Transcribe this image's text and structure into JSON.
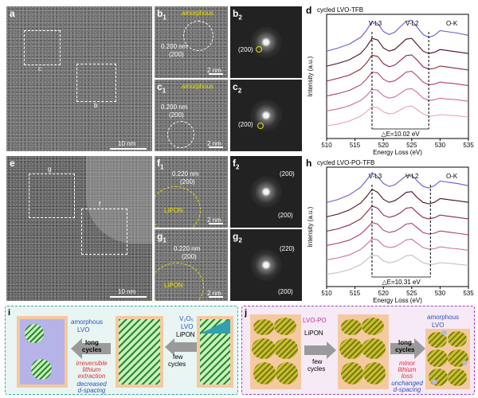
{
  "labels": {
    "a": "a",
    "b1": "b",
    "b1s": "1",
    "b2": "b",
    "b2s": "2",
    "c1": "c",
    "c1s": "1",
    "c2": "c",
    "c2s": "2",
    "d": "d",
    "e": "e",
    "f1": "f",
    "f1s": "1",
    "f2": "f",
    "f2s": "2",
    "g1": "g",
    "g1s": "1",
    "g2": "g",
    "g2s": "2",
    "h": "h",
    "i": "i",
    "j": "j",
    "box_c": "c",
    "box_b": "b",
    "box_g": "g",
    "box_f": "f"
  },
  "tem": {
    "scale_a": "10 nm",
    "scale_e": "10 nm",
    "scale_2nm": "2 nm",
    "amorphous": "amorphous",
    "dspacing_b": "0.200 nm",
    "plane_b": "(200)",
    "dspacing_c": "0.200 nm",
    "plane_c": "(200)",
    "dspacing_f": "0.220 nm",
    "plane_f": "(200)",
    "dspacing_g": "0.220 nm",
    "plane_g": "(200)",
    "lipon": "LiPON",
    "fft_b2": "(200)",
    "fft_c2": "(200)",
    "fft_f2_top": "(200)",
    "fft_f2_bot": "(200)",
    "fft_g2_top": "(220)",
    "fft_g2_bot": "(200)"
  },
  "chart_data": [
    {
      "type": "line",
      "title": "cycled LVO-TFB",
      "xlabel": "Energy Loss (eV)",
      "ylabel": "Intensity (a.u.)",
      "xlim": [
        510,
        535
      ],
      "xticks": [
        "510",
        "515",
        "520",
        "525",
        "530",
        "535"
      ],
      "peak_labels": [
        "V-L3",
        "V-L2",
        "O-K"
      ],
      "dashed_lines_x": [
        518,
        528
      ],
      "annotation": "△E=10.02 eV",
      "series_colors": [
        "#6a5acd",
        "#4a0f1a",
        "#8b2a3a",
        "#b04060",
        "#d07090",
        "#e8a0b8"
      ],
      "series": [
        {
          "offset": 5,
          "x": [
            510,
            512,
            514,
            516,
            517,
            518,
            519,
            520,
            521,
            522,
            523,
            524,
            525,
            526,
            527,
            528,
            529,
            530,
            531,
            532,
            533,
            535
          ],
          "y": [
            0.2,
            0.28,
            0.38,
            0.55,
            0.72,
            0.95,
            0.9,
            0.7,
            0.62,
            0.68,
            0.82,
            0.95,
            0.98,
            0.8,
            0.62,
            0.55,
            0.6,
            0.72,
            0.7,
            0.68,
            0.66,
            0.6
          ]
        },
        {
          "offset": 4,
          "x": [
            510,
            512,
            514,
            516,
            517,
            518,
            519,
            520,
            521,
            522,
            523,
            524,
            525,
            526,
            527,
            528,
            529,
            530,
            531,
            532,
            533,
            535
          ],
          "y": [
            0.2,
            0.27,
            0.36,
            0.52,
            0.68,
            0.9,
            0.86,
            0.66,
            0.58,
            0.62,
            0.75,
            0.88,
            0.9,
            0.74,
            0.58,
            0.52,
            0.55,
            0.62,
            0.6,
            0.58,
            0.56,
            0.52
          ]
        },
        {
          "offset": 3,
          "x": [
            510,
            512,
            514,
            516,
            517,
            518,
            519,
            520,
            521,
            522,
            523,
            524,
            525,
            526,
            527,
            528,
            529,
            530,
            531,
            532,
            533,
            535
          ],
          "y": [
            0.2,
            0.27,
            0.35,
            0.5,
            0.65,
            0.85,
            0.82,
            0.64,
            0.56,
            0.6,
            0.72,
            0.84,
            0.86,
            0.72,
            0.56,
            0.5,
            0.52,
            0.58,
            0.56,
            0.54,
            0.52,
            0.48
          ]
        },
        {
          "offset": 2,
          "x": [
            510,
            512,
            514,
            516,
            517,
            518,
            519,
            520,
            521,
            522,
            523,
            524,
            525,
            526,
            527,
            528,
            529,
            530,
            531,
            532,
            533,
            535
          ],
          "y": [
            0.2,
            0.26,
            0.34,
            0.48,
            0.62,
            0.8,
            0.78,
            0.62,
            0.55,
            0.58,
            0.68,
            0.8,
            0.82,
            0.7,
            0.55,
            0.48,
            0.5,
            0.55,
            0.53,
            0.52,
            0.5,
            0.46
          ]
        },
        {
          "offset": 1,
          "x": [
            510,
            512,
            514,
            516,
            517,
            518,
            519,
            520,
            521,
            522,
            523,
            524,
            525,
            526,
            527,
            528,
            529,
            530,
            531,
            532,
            533,
            535
          ],
          "y": [
            0.2,
            0.25,
            0.33,
            0.46,
            0.58,
            0.74,
            0.72,
            0.58,
            0.52,
            0.55,
            0.64,
            0.74,
            0.76,
            0.66,
            0.52,
            0.46,
            0.48,
            0.52,
            0.5,
            0.49,
            0.48,
            0.44
          ]
        },
        {
          "offset": 0,
          "x": [
            510,
            512,
            514,
            516,
            517,
            518,
            519,
            520,
            521,
            522,
            523,
            524,
            525,
            526,
            527,
            528,
            529,
            530,
            531,
            532,
            533,
            535
          ],
          "y": [
            0.2,
            0.24,
            0.32,
            0.44,
            0.55,
            0.68,
            0.66,
            0.55,
            0.5,
            0.52,
            0.6,
            0.68,
            0.7,
            0.6,
            0.5,
            0.44,
            0.45,
            0.48,
            0.47,
            0.46,
            0.45,
            0.42
          ]
        }
      ]
    },
    {
      "type": "line",
      "title": "cycled LVO-PO-TFB",
      "xlabel": "Energy Loss (eV)",
      "ylabel": "Intensity (a.u.)",
      "xlim": [
        510,
        535
      ],
      "xticks": [
        "510",
        "515",
        "520",
        "525",
        "530",
        "535"
      ],
      "peak_labels": [
        "V-L3",
        "V-L2",
        "O-K"
      ],
      "dashed_lines_x": [
        518,
        528.3
      ],
      "annotation": "△E=10.31 eV",
      "series_colors": [
        "#6a5acd",
        "#4a0f1a",
        "#8b2a3a",
        "#b04060",
        "#d07090",
        "#c0c0c0"
      ],
      "series": [
        {
          "offset": 5,
          "x": [
            510,
            512,
            514,
            516,
            517,
            518,
            519,
            520,
            521,
            522,
            523,
            524,
            525,
            526,
            527,
            528,
            529,
            530,
            531,
            532,
            533,
            535
          ],
          "y": [
            0.2,
            0.28,
            0.4,
            0.6,
            0.78,
            0.98,
            0.88,
            0.7,
            0.62,
            0.66,
            0.78,
            0.9,
            0.92,
            0.76,
            0.62,
            0.58,
            0.64,
            0.76,
            0.74,
            0.72,
            0.7,
            0.64
          ]
        },
        {
          "offset": 4,
          "x": [
            510,
            512,
            514,
            516,
            517,
            518,
            519,
            520,
            521,
            522,
            523,
            524,
            525,
            526,
            527,
            528,
            529,
            530,
            531,
            532,
            533,
            535
          ],
          "y": [
            0.2,
            0.27,
            0.38,
            0.56,
            0.72,
            0.92,
            0.84,
            0.66,
            0.58,
            0.62,
            0.72,
            0.84,
            0.86,
            0.7,
            0.58,
            0.54,
            0.58,
            0.68,
            0.66,
            0.64,
            0.62,
            0.58
          ]
        },
        {
          "offset": 3,
          "x": [
            510,
            512,
            514,
            516,
            517,
            518,
            519,
            520,
            521,
            522,
            523,
            524,
            525,
            526,
            527,
            528,
            529,
            530,
            531,
            532,
            533,
            535
          ],
          "y": [
            0.2,
            0.26,
            0.36,
            0.52,
            0.68,
            0.86,
            0.8,
            0.62,
            0.56,
            0.6,
            0.68,
            0.8,
            0.82,
            0.68,
            0.56,
            0.52,
            0.55,
            0.62,
            0.6,
            0.58,
            0.56,
            0.52
          ]
        },
        {
          "offset": 2,
          "x": [
            510,
            512,
            514,
            516,
            517,
            518,
            519,
            520,
            521,
            522,
            523,
            524,
            525,
            526,
            527,
            528,
            529,
            530,
            531,
            532,
            533,
            535
          ],
          "y": [
            0.2,
            0.26,
            0.34,
            0.5,
            0.64,
            0.8,
            0.76,
            0.6,
            0.54,
            0.57,
            0.65,
            0.76,
            0.78,
            0.66,
            0.54,
            0.5,
            0.52,
            0.58,
            0.56,
            0.54,
            0.52,
            0.48
          ]
        },
        {
          "offset": 1,
          "x": [
            510,
            512,
            514,
            516,
            517,
            518,
            519,
            520,
            521,
            522,
            523,
            524,
            525,
            526,
            527,
            528,
            529,
            530,
            531,
            532,
            533,
            535
          ],
          "y": [
            0.2,
            0.25,
            0.33,
            0.47,
            0.6,
            0.75,
            0.72,
            0.57,
            0.52,
            0.54,
            0.62,
            0.72,
            0.74,
            0.63,
            0.52,
            0.48,
            0.49,
            0.54,
            0.52,
            0.5,
            0.49,
            0.45
          ]
        },
        {
          "offset": 0,
          "x": [
            510,
            512,
            514,
            516,
            517,
            518,
            519,
            520,
            521,
            522,
            523,
            524,
            525,
            526,
            527,
            528,
            529,
            530,
            531,
            532,
            533,
            535
          ],
          "y": [
            0.2,
            0.24,
            0.32,
            0.45,
            0.57,
            0.7,
            0.68,
            0.55,
            0.5,
            0.52,
            0.59,
            0.68,
            0.7,
            0.6,
            0.5,
            0.46,
            0.46,
            0.5,
            0.49,
            0.48,
            0.46,
            0.43
          ]
        }
      ]
    }
  ],
  "schematic_i": {
    "amorphous": "amorphous",
    "lvo": "LVO",
    "long": "long",
    "cycles_long": "cycles",
    "irreversible_1": "irreversible",
    "irreversible_2": "lithium",
    "irreversible_3": "extraction",
    "decreased_1": "decreased",
    "decreased_2": "d-spacing",
    "v2o5": "V₂O₅",
    "lvo2": "LVO",
    "lipon": "LiPON",
    "few": "few",
    "cycles_few": "cycles"
  },
  "schematic_j": {
    "lvo_po": "LVO-PO",
    "lipon": "LiPON",
    "few": "few",
    "cycles_few": "cycles",
    "amorphous": "amorphous",
    "lvo": "LVO",
    "long": "long",
    "cycles_long": "cycles",
    "minor_1": "minor",
    "minor_2": "lithium",
    "minor_3": "loss",
    "unchanged_1": "unchanged",
    "unchanged_2": "d-spacing"
  }
}
